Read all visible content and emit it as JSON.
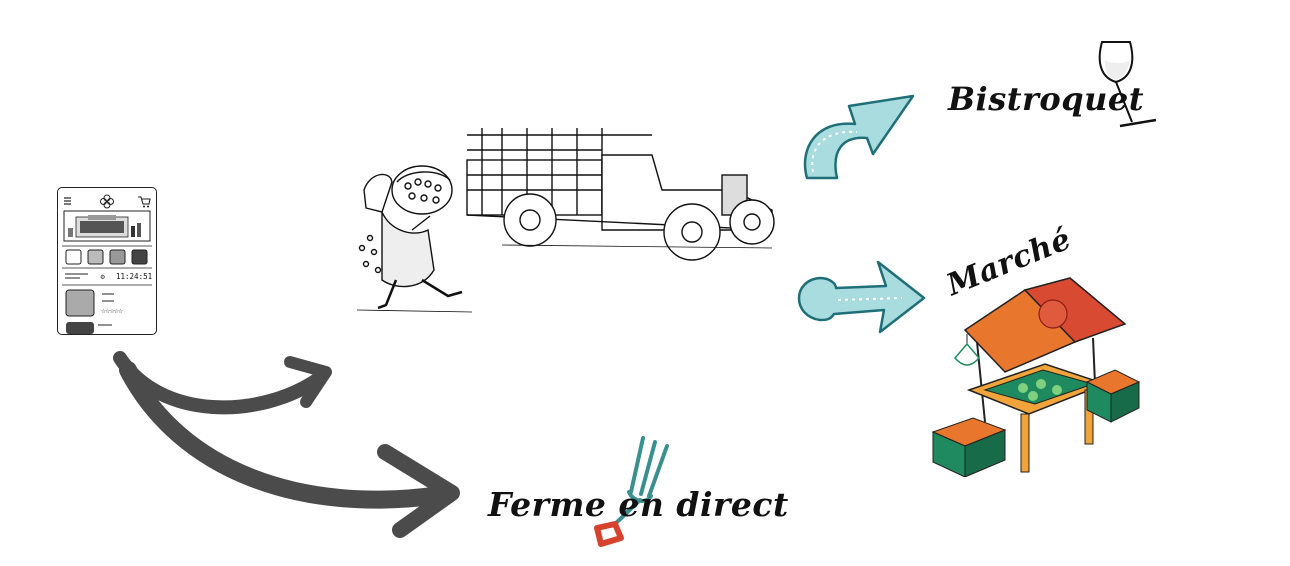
{
  "phone": {
    "menu_icon": "hamburger-icon",
    "logo_icon": "clover-logo-icon",
    "cart_icon": "cart-icon",
    "clock_text": "11:24:51",
    "rating_stars": "☆☆☆☆☆",
    "rating_value": 0
  },
  "destinations": {
    "bistroquet": "Bistroquet",
    "marche": "Marché",
    "ferme": "Ferme en direct"
  },
  "colors": {
    "arrow_gray": "#4b4b4b",
    "arrow_teal": "#a9dcdf",
    "stall_orange": "#e8762c",
    "stall_red": "#d94a32",
    "crate_green": "#1f8a5f",
    "fork_red": "#d7422f",
    "fork_teal": "#3a8f8f"
  }
}
